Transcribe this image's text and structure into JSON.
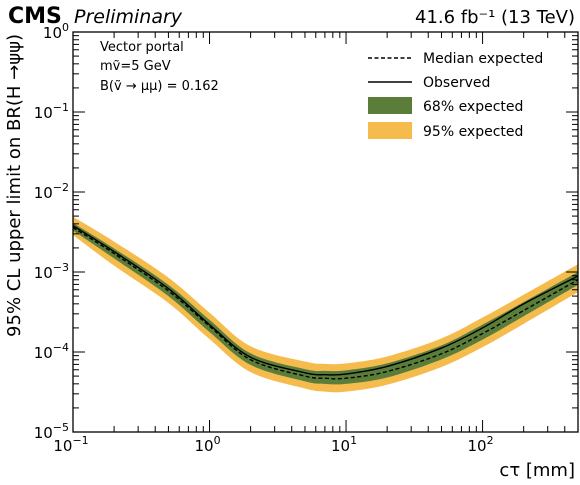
{
  "header": {
    "experiment": "CMS",
    "status": "Preliminary",
    "lumi": "41.6 fb⁻¹ (13 TeV)"
  },
  "annotations": [
    "Vector portal",
    "mṽ=5 GeV",
    "B(ṽ → μμ) = 0.162"
  ],
  "chart_data": {
    "type": "line",
    "xlabel": "cτ [mm]",
    "ylabel": "95% CL upper limit on BR(H →ψψ)",
    "xscale": "log",
    "yscale": "log",
    "xlim": [
      0.1,
      500
    ],
    "ylim": [
      1e-05,
      1
    ],
    "xticks": [
      {
        "value": 0.1,
        "base": "10",
        "exp": "−1"
      },
      {
        "value": 1,
        "base": "10",
        "exp": "0"
      },
      {
        "value": 10,
        "base": "10",
        "exp": "1"
      },
      {
        "value": 100,
        "base": "10",
        "exp": "2"
      }
    ],
    "yticks": [
      {
        "value": 1e-05,
        "base": "10",
        "exp": "−5"
      },
      {
        "value": 0.0001,
        "base": "10",
        "exp": "−4"
      },
      {
        "value": 0.001,
        "base": "10",
        "exp": "−3"
      },
      {
        "value": 0.01,
        "base": "10",
        "exp": "−2"
      },
      {
        "value": 0.1,
        "base": "10",
        "exp": "−1"
      },
      {
        "value": 1,
        "base": "10",
        "exp": "0"
      }
    ],
    "x": [
      0.1,
      0.2,
      0.5,
      1,
      2,
      5,
      7,
      10,
      20,
      50,
      100,
      200,
      500
    ],
    "series": [
      {
        "name": "Median expected",
        "style": "dashed",
        "values": [
          0.0036,
          0.0017,
          0.00058,
          0.00021,
          8e-05,
          5e-05,
          4.7e-05,
          4.7e-05,
          5.7e-05,
          9.5e-05,
          0.00017,
          0.00033,
          0.0008
        ]
      },
      {
        "name": "Observed",
        "style": "solid",
        "values": [
          0.0038,
          0.0018,
          0.00062,
          0.00022,
          8.6e-05,
          5.5e-05,
          5.2e-05,
          5.3e-05,
          6.6e-05,
          0.000112,
          0.0002,
          0.0004,
          0.00089
        ]
      }
    ],
    "bands": [
      {
        "name": "95% expected",
        "color": "#f5bb4d",
        "low": [
          0.0029,
          0.0012,
          0.00041,
          0.000145,
          5.6e-05,
          3.5e-05,
          3.2e-05,
          3.2e-05,
          3.9e-05,
          6.5e-05,
          0.000115,
          0.000225,
          0.00056
        ],
        "high": [
          0.0049,
          0.0024,
          0.00085,
          0.00031,
          0.000118,
          7.6e-05,
          7.1e-05,
          7.2e-05,
          8.8e-05,
          0.000148,
          0.00027,
          0.00052,
          0.00125
        ]
      },
      {
        "name": "68% expected",
        "color": "#5a7d3a",
        "low": [
          0.0033,
          0.00148,
          0.0005,
          0.000178,
          6.9e-05,
          4.3e-05,
          4e-05,
          4e-05,
          4.8e-05,
          8.1e-05,
          0.000143,
          0.00028,
          0.00069
        ],
        "high": [
          0.0041,
          0.00197,
          0.00069,
          0.000252,
          9.6e-05,
          6.1e-05,
          5.8e-05,
          5.9e-05,
          7.2e-05,
          0.000121,
          0.00022,
          0.00042,
          0.001
        ]
      }
    ],
    "legend": {
      "placement": "top-right",
      "entries": [
        {
          "label": "Median expected",
          "kind": "dashed"
        },
        {
          "label": "Observed",
          "kind": "solid"
        },
        {
          "label": "68% expected",
          "kind": "box",
          "color": "#5a7d3a"
        },
        {
          "label": "95% expected",
          "kind": "box",
          "color": "#f5bb4d"
        }
      ]
    }
  }
}
